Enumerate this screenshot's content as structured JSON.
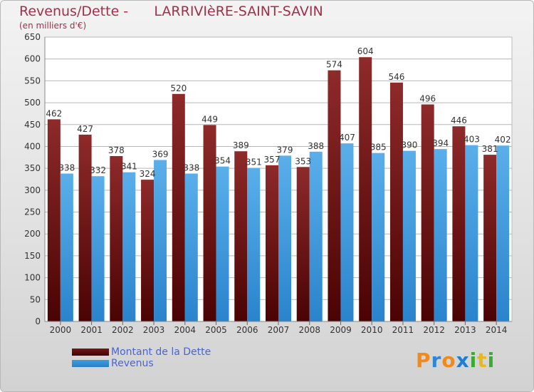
{
  "header": {
    "title": "Revenus/Dette -      LARRIVIèRE-SAINT-SAVIN",
    "subtitle": "(en milliers d'€)"
  },
  "chart_data": {
    "type": "bar",
    "categories": [
      "2000",
      "2001",
      "2002",
      "2003",
      "2004",
      "2005",
      "2006",
      "2007",
      "2008",
      "2009",
      "2010",
      "2011",
      "2012",
      "2013",
      "2014"
    ],
    "series": [
      {
        "name": "Montant de la Dette",
        "values": [
          462,
          427,
          378,
          324,
          520,
          449,
          389,
          357,
          353,
          574,
          604,
          546,
          496,
          446,
          381
        ],
        "color": "#8b1a1a"
      },
      {
        "name": "Revenus",
        "values": [
          338,
          332,
          341,
          369,
          338,
          354,
          351,
          379,
          388,
          407,
          385,
          390,
          394,
          403,
          402
        ],
        "color": "#3d9be0"
      }
    ],
    "ylim": [
      0,
      650
    ],
    "yticks": [
      0,
      50,
      100,
      150,
      200,
      250,
      300,
      350,
      400,
      450,
      500,
      550,
      600,
      650
    ],
    "grid": true,
    "legend_position": "bottom-left"
  },
  "legend": {
    "items": [
      {
        "label": "Montant de la Dette",
        "color": "#7a1414"
      },
      {
        "label": "Revenus",
        "color": "#3d9be0"
      }
    ]
  },
  "logo": {
    "letters": [
      "P",
      "r",
      "o",
      "x",
      "i",
      "t",
      "i"
    ],
    "colors": [
      "#f08a1c",
      "#2e86d6",
      "#f08a1c",
      "#1e7fd0",
      "#3aaa35",
      "#e8b81e",
      "#3aaa35"
    ]
  }
}
